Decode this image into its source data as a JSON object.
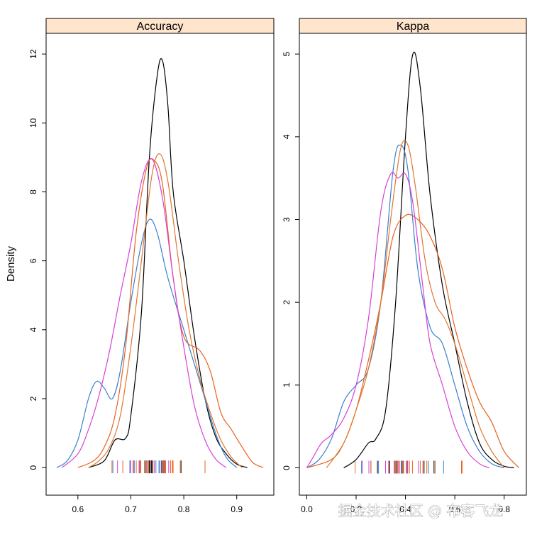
{
  "chart_data": {
    "type": "line",
    "ylabel": "Density",
    "series_colors": [
      "#000000",
      "#3a7fd0",
      "#e8621f",
      "#d640d6",
      "#e0762e"
    ],
    "panels": [
      {
        "strip": "Accuracy",
        "xlim": [
          0.54,
          0.97
        ],
        "ylim": [
          -0.8,
          12.6
        ],
        "xticks": [
          "0.6",
          "0.7",
          "0.8",
          "0.9"
        ],
        "xtick_values": [
          0.6,
          0.7,
          0.8,
          0.9
        ],
        "yticks": [
          "0",
          "2",
          "4",
          "6",
          "8",
          "10",
          "12"
        ],
        "ytick_values": [
          0,
          2,
          4,
          6,
          8,
          10,
          12
        ],
        "series": [
          {
            "x": [
              0.62,
              0.65,
              0.67,
              0.69,
              0.7,
              0.72,
              0.735,
              0.75,
              0.76,
              0.77,
              0.78,
              0.8,
              0.82,
              0.84,
              0.86,
              0.88,
              0.9,
              0.92
            ],
            "y": [
              0,
              0.2,
              0.8,
              0.85,
              1.5,
              4.5,
              9.0,
              11.4,
              11.8,
              10.5,
              8.0,
              6.0,
              3.8,
              2.0,
              0.9,
              0.4,
              0.1,
              0
            ]
          },
          {
            "x": [
              0.56,
              0.58,
              0.6,
              0.62,
              0.635,
              0.65,
              0.665,
              0.68,
              0.7,
              0.72,
              0.735,
              0.75,
              0.77,
              0.8,
              0.83,
              0.86,
              0.88,
              0.9
            ],
            "y": [
              0,
              0.2,
              0.8,
              2.0,
              2.5,
              2.3,
              2.0,
              2.8,
              4.8,
              6.5,
              7.2,
              6.8,
              5.5,
              4.0,
              2.5,
              1.0,
              0.3,
              0
            ]
          },
          {
            "x": [
              0.6,
              0.63,
              0.65,
              0.67,
              0.69,
              0.71,
              0.73,
              0.745,
              0.76,
              0.78,
              0.8,
              0.83,
              0.85,
              0.87,
              0.89,
              0.91,
              0.93,
              0.95
            ],
            "y": [
              0,
              0.2,
              0.6,
              1.5,
              3.5,
              6.8,
              8.7,
              8.9,
              8.2,
              5.5,
              3.8,
              3.4,
              2.8,
              1.6,
              1.1,
              0.6,
              0.15,
              0
            ]
          },
          {
            "x": [
              0.57,
              0.6,
              0.62,
              0.64,
              0.66,
              0.68,
              0.7,
              0.72,
              0.74,
              0.76,
              0.78,
              0.8,
              0.82,
              0.84,
              0.86,
              0.88
            ],
            "y": [
              0,
              0.4,
              1.1,
              2.1,
              3.4,
              5.0,
              6.5,
              8.3,
              8.95,
              7.8,
              5.5,
              3.5,
              1.8,
              0.8,
              0.25,
              0
            ]
          },
          {
            "x": [
              0.62,
              0.64,
              0.66,
              0.68,
              0.7,
              0.72,
              0.74,
              0.755,
              0.77,
              0.79,
              0.81,
              0.83,
              0.85,
              0.87,
              0.89,
              0.91
            ],
            "y": [
              0,
              0.2,
              0.6,
              1.5,
              3.5,
              6.0,
              8.5,
              9.1,
              8.3,
              6.0,
              4.0,
              2.6,
              1.6,
              0.8,
              0.3,
              0
            ]
          }
        ]
      },
      {
        "strip": "Kappa",
        "xlim": [
          -0.03,
          0.89
        ],
        "ylim": [
          -0.33,
          5.25
        ],
        "xticks": [
          "0.0",
          "0.2",
          "0.4",
          "0.6",
          "0.8"
        ],
        "xtick_values": [
          0.0,
          0.2,
          0.4,
          0.6,
          0.8
        ],
        "yticks": [
          "0",
          "1",
          "2",
          "3",
          "4",
          "5"
        ],
        "ytick_values": [
          0,
          1,
          2,
          3,
          4,
          5
        ],
        "series": [
          {
            "x": [
              0.15,
              0.2,
              0.25,
              0.28,
              0.32,
              0.36,
              0.4,
              0.43,
              0.46,
              0.5,
              0.55,
              0.6,
              0.65,
              0.7,
              0.75,
              0.8,
              0.84
            ],
            "y": [
              0,
              0.1,
              0.3,
              0.35,
              0.7,
              2.0,
              4.0,
              5.0,
              4.6,
              3.3,
              2.2,
              1.5,
              0.8,
              0.3,
              0.1,
              0.02,
              0
            ]
          },
          {
            "x": [
              0.0,
              0.05,
              0.1,
              0.15,
              0.2,
              0.25,
              0.3,
              0.35,
              0.38,
              0.41,
              0.45,
              0.5,
              0.55,
              0.6,
              0.65,
              0.7,
              0.75,
              0.8
            ],
            "y": [
              0,
              0.1,
              0.35,
              0.8,
              1.0,
              1.2,
              2.0,
              3.6,
              3.9,
              3.6,
              2.4,
              1.7,
              1.5,
              1.0,
              0.5,
              0.2,
              0.05,
              0
            ]
          },
          {
            "x": [
              0.0,
              0.1,
              0.15,
              0.2,
              0.25,
              0.3,
              0.35,
              0.4,
              0.45,
              0.5,
              0.55,
              0.6,
              0.65,
              0.7,
              0.75,
              0.8,
              0.86
            ],
            "y": [
              0,
              0.1,
              0.3,
              0.7,
              1.3,
              2.0,
              2.8,
              3.05,
              3.0,
              2.8,
              2.4,
              1.7,
              1.2,
              0.8,
              0.55,
              0.2,
              0
            ]
          },
          {
            "x": [
              0.0,
              0.03,
              0.06,
              0.1,
              0.15,
              0.2,
              0.25,
              0.3,
              0.34,
              0.37,
              0.4,
              0.43,
              0.47,
              0.5,
              0.55,
              0.6,
              0.65,
              0.7,
              0.74
            ],
            "y": [
              0,
              0.15,
              0.3,
              0.4,
              0.6,
              1.0,
              1.8,
              3.1,
              3.55,
              3.5,
              3.55,
              3.2,
              2.2,
              1.5,
              1.0,
              0.5,
              0.2,
              0.05,
              0
            ]
          },
          {
            "x": [
              0.08,
              0.15,
              0.2,
              0.25,
              0.3,
              0.34,
              0.38,
              0.41,
              0.44,
              0.48,
              0.52,
              0.56,
              0.6,
              0.65,
              0.7,
              0.75,
              0.8
            ],
            "y": [
              0,
              0.3,
              0.7,
              1.2,
              2.0,
              3.0,
              3.85,
              3.9,
              3.4,
              2.5,
              2.0,
              1.8,
              1.5,
              1.0,
              0.5,
              0.2,
              0
            ]
          }
        ]
      }
    ]
  },
  "watermark": "掘金技术社区 @ 布客飞龙"
}
